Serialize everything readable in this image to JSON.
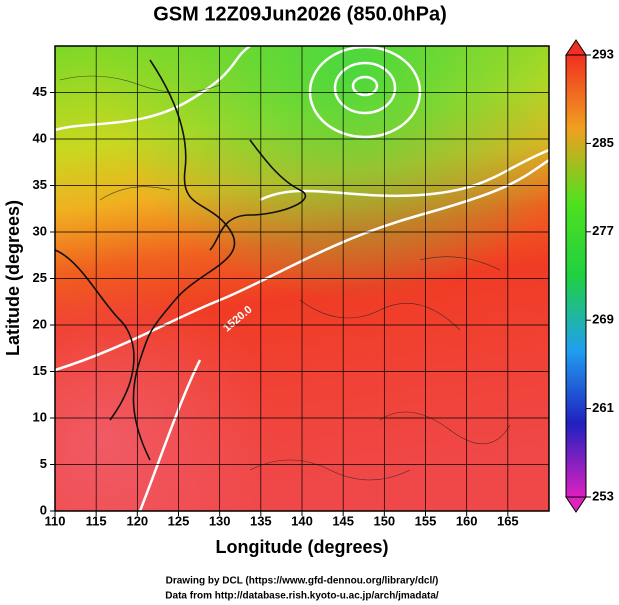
{
  "chart_data": {
    "type": "map",
    "title": "GSM 12Z09Jun2026 (850.0hPa)",
    "x_label": "Longitude (degrees)",
    "y_label": "Latitude  (degrees)",
    "xlim": [
      110,
      170
    ],
    "xticks": [
      110,
      115,
      120,
      125,
      130,
      135,
      140,
      145,
      150,
      155,
      160,
      165
    ],
    "ylim": [
      0,
      50
    ],
    "yticks": [
      0,
      5,
      10,
      15,
      20,
      25,
      30,
      35,
      40,
      45
    ],
    "grid": true,
    "colorbar": {
      "lim": [
        253,
        293
      ],
      "ticks": [
        253,
        261,
        269,
        277,
        285,
        293
      ],
      "colors": [
        "#e020c0",
        "#2020c0",
        "#20a0f0",
        "#20d040",
        "#50e020",
        "#f0a020",
        "#f03020"
      ]
    },
    "contour_label": "1520.0",
    "credits": [
      "Drawing by DCL (https://www.gfd-dennou.org/library/dcl/)",
      "Data from http://database.rish.kyoto-u.ac.jp/arch/jmadata/"
    ]
  }
}
